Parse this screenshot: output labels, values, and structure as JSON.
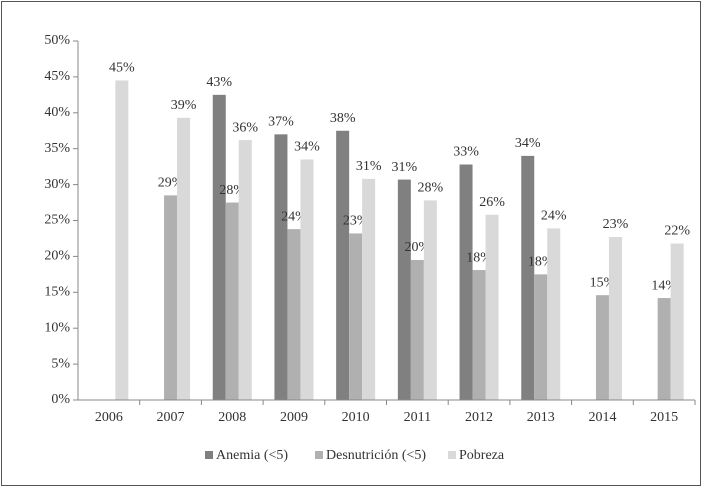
{
  "chart_data": {
    "type": "bar",
    "categories": [
      "2006",
      "2007",
      "2008",
      "2009",
      "2010",
      "2011",
      "2012",
      "2013",
      "2014",
      "2015"
    ],
    "series": [
      {
        "name": "Anemia (<5)",
        "color": "#808080",
        "values": [
          null,
          null,
          42.5,
          37,
          37.5,
          30.7,
          32.8,
          34,
          null,
          null
        ],
        "value_labels": [
          null,
          null,
          "43%",
          "37%",
          "38%",
          "31%",
          "33%",
          "34%",
          null,
          null
        ]
      },
      {
        "name": "Desnutrición (<5)",
        "color": "#b0b0b0",
        "values": [
          null,
          28.5,
          27.5,
          23.8,
          23.2,
          19.5,
          18.1,
          17.5,
          14.6,
          14.2
        ],
        "value_labels": [
          null,
          "29%",
          "28%",
          "24%",
          "23%",
          "20%",
          "18%",
          "18%",
          "15%",
          "14%"
        ]
      },
      {
        "name": "Pobreza",
        "color": "#d9d9d9",
        "values": [
          44.5,
          39.3,
          36.2,
          33.5,
          30.8,
          27.8,
          25.8,
          23.9,
          22.7,
          21.8
        ],
        "value_labels": [
          "45%",
          "39%",
          "36%",
          "34%",
          "31%",
          "28%",
          "26%",
          "24%",
          "23%",
          "22%"
        ]
      }
    ],
    "ylim": [
      0,
      50
    ],
    "yticks": [
      {
        "value": 0,
        "label": "0%"
      },
      {
        "value": 5,
        "label": "5%"
      },
      {
        "value": 10,
        "label": "10%"
      },
      {
        "value": 15,
        "label": "15%"
      },
      {
        "value": 20,
        "label": "20%"
      },
      {
        "value": 25,
        "label": "25%"
      },
      {
        "value": 30,
        "label": "30%"
      },
      {
        "value": 35,
        "label": "35%"
      },
      {
        "value": 40,
        "label": "40%"
      },
      {
        "value": 45,
        "label": "45%"
      },
      {
        "value": 50,
        "label": "50%"
      }
    ],
    "grid": false,
    "legend": "bottom"
  }
}
